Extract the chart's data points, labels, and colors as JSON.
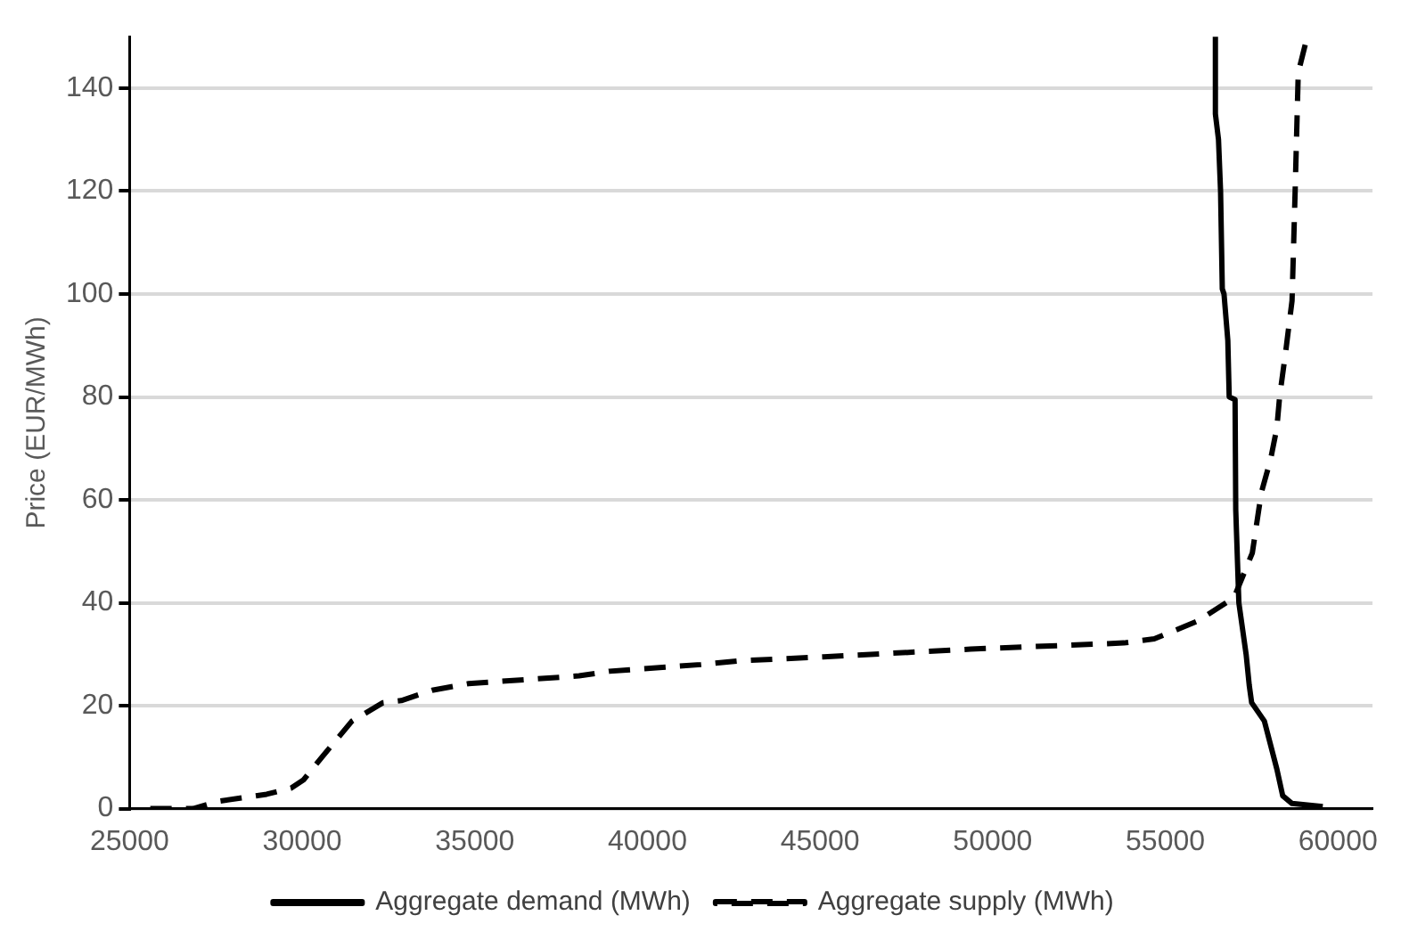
{
  "chart_data": {
    "type": "line",
    "ylabel": "Price (EUR/MWh)",
    "xlim": [
      25000,
      61000
    ],
    "xticks": [
      25000,
      30000,
      35000,
      40000,
      45000,
      50000,
      55000,
      60000
    ],
    "ylim": [
      0,
      150
    ],
    "yticks": [
      0,
      20,
      40,
      60,
      80,
      100,
      120,
      140
    ],
    "grid": "y",
    "legend": "bottom",
    "marker": "none",
    "series": [
      {
        "name": "Aggregate demand (MWh)",
        "color": "#000000",
        "line_style": "solid",
        "x": [
          56450,
          56450,
          56540,
          56600,
          56650,
          56700,
          56810,
          56850,
          57020,
          57040,
          57130,
          57340,
          57430,
          57500,
          57870,
          58230,
          58400,
          58670,
          59560
        ],
        "values": [
          150,
          135,
          130,
          120,
          101,
          100,
          91,
          80,
          79.5,
          58,
          40,
          30,
          24,
          20.6,
          17,
          7.7,
          2.5,
          1,
          0.4
        ]
      },
      {
        "name": "Aggregate supply (MWh)",
        "color": "#000000",
        "line_style": "dashed",
        "x": [
          25600,
          26840,
          27550,
          28970,
          29680,
          30040,
          30570,
          31440,
          32340,
          32870,
          33760,
          34820,
          38020,
          38900,
          41550,
          42600,
          45100,
          49360,
          53800,
          54680,
          55920,
          56990,
          57520,
          57780,
          58050,
          58230,
          58310,
          58490,
          58670,
          58760,
          58850,
          59110
        ],
        "values": [
          0,
          0,
          1.4,
          2.8,
          4,
          5.6,
          10,
          17,
          20.6,
          21,
          23,
          24.3,
          25.8,
          26.7,
          28,
          28.7,
          29.5,
          31,
          32.2,
          33,
          36.4,
          41,
          49.7,
          61.4,
          67.9,
          74,
          80,
          89,
          98.7,
          120,
          143,
          150
        ]
      }
    ]
  }
}
